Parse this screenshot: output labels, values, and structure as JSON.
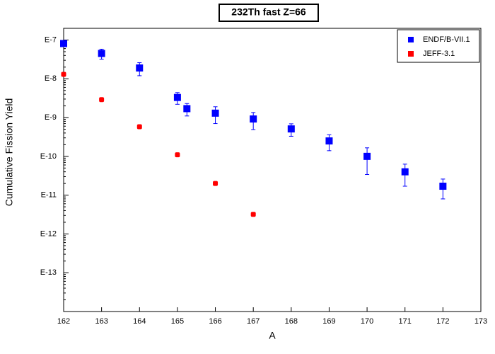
{
  "chart_data": {
    "type": "scatter",
    "title": "232Th fast Z=66",
    "x_label": "A",
    "y_label": "Cumulative Fission Yield",
    "log_y": true,
    "legend": "upper right",
    "xlim": [
      162,
      173
    ],
    "xticks": [
      162,
      163,
      164,
      165,
      166,
      167,
      168,
      169,
      170,
      171,
      172,
      173
    ],
    "ylim": [
      1e-14,
      2e-07
    ],
    "yticks": [
      {
        "value": 1e-07,
        "label": "E-7"
      },
      {
        "value": 1e-08,
        "label": "E-8"
      },
      {
        "value": 1e-09,
        "label": "E-9"
      },
      {
        "value": 1e-10,
        "label": "E-10"
      },
      {
        "value": 1e-11,
        "label": "E-11"
      },
      {
        "value": 1e-12,
        "label": "E-12"
      },
      {
        "value": 1e-13,
        "label": "E-13"
      }
    ],
    "series": [
      {
        "name": "ENDF/B-VII.1",
        "color": "#0000ff",
        "x": [
          162,
          163,
          164,
          165,
          165.25,
          166,
          167,
          168,
          169,
          170,
          171,
          172
        ],
        "values": [
          8.1e-08,
          4.5e-08,
          1.9e-08,
          3.3e-09,
          1.7e-09,
          1.3e-09,
          9.2e-10,
          5.1e-10,
          2.5e-10,
          1e-10,
          4e-11,
          1.7e-11
        ],
        "errors": [
          5e-09,
          1.3e-08,
          7e-09,
          1.1e-09,
          6e-10,
          6e-10,
          4.3e-10,
          1.8e-10,
          1.1e-10,
          6.6e-11,
          2.3e-11,
          9e-12
        ]
      },
      {
        "name": "JEFF-3.1",
        "color": "#ff0000",
        "x": [
          162,
          163,
          164,
          165,
          166,
          167
        ],
        "values": [
          1.3e-08,
          2.9e-09,
          5.8e-10,
          1.1e-10,
          2e-11,
          3.2e-12
        ]
      }
    ]
  }
}
